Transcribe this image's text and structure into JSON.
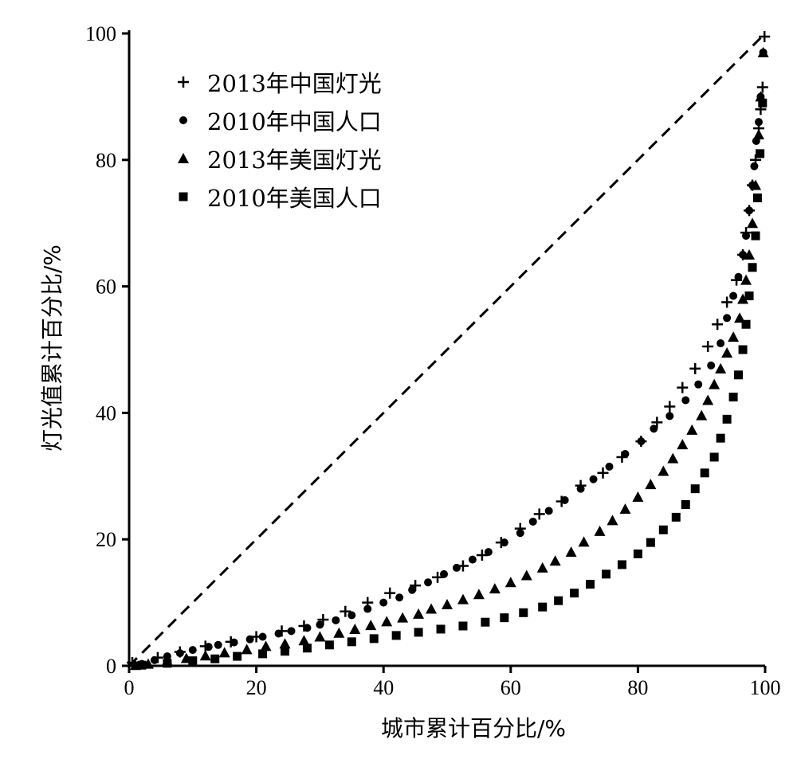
{
  "chart_data": {
    "type": "scatter",
    "xlabel": "城市累计百分比/%",
    "ylabel": "灯光值累计百分比/%",
    "xlim": [
      0,
      100
    ],
    "ylim": [
      0,
      100
    ],
    "x_ticks": [
      "0",
      "20",
      "40",
      "60",
      "80",
      "100"
    ],
    "y_ticks": [
      "0",
      "20",
      "40",
      "60",
      "80",
      "100"
    ],
    "grid": false,
    "legend_position": "top-left",
    "reference_line": {
      "style": "dashed",
      "from": [
        0,
        0
      ],
      "to": [
        100,
        100
      ]
    },
    "series": [
      {
        "name": "2013年中国灯光",
        "marker": "plus",
        "x": [
          0.5,
          4.5,
          8,
          12,
          16,
          20,
          24,
          27.5,
          30.5,
          34,
          37.5,
          41,
          45,
          48.5,
          52.5,
          55.5,
          58.5,
          61.5,
          64.5,
          68,
          71,
          74.5,
          77.5,
          80.5,
          83,
          85,
          87,
          89,
          91,
          92.5,
          94,
          95.5,
          96.5,
          97,
          97.5,
          98,
          98.5,
          99,
          99.3,
          99.6,
          99.9
        ],
        "y": [
          0.5,
          1.3,
          2.2,
          3.1,
          3.8,
          4.6,
          5.5,
          6.3,
          7.3,
          8.6,
          10,
          11.5,
          12.7,
          14,
          15.8,
          17.5,
          19.5,
          21.7,
          24,
          26,
          28.5,
          30.5,
          33,
          35.5,
          38.5,
          41,
          44,
          47,
          50.5,
          54,
          57.5,
          61,
          65,
          68.5,
          72,
          76,
          80,
          85,
          88,
          91.5,
          99.5
        ]
      },
      {
        "name": "2010年中国人口",
        "marker": "circle",
        "x": [
          2,
          4,
          6,
          8,
          10,
          12.5,
          14,
          16.5,
          19,
          21,
          23.5,
          25.5,
          28,
          30,
          32.5,
          35,
          37.5,
          40,
          42.5,
          44.5,
          47,
          49.5,
          51.5,
          54,
          56.5,
          59,
          61.5,
          63.5,
          66,
          68.5,
          71,
          73,
          75.5,
          78,
          80.5,
          82.5,
          85,
          87.5,
          89.5,
          91.5,
          93,
          94,
          95,
          95.8,
          96.5,
          97,
          97.5,
          98,
          98.3,
          98.6,
          99,
          99.3,
          99.7
        ],
        "y": [
          0.3,
          0.9,
          1.5,
          2,
          2.5,
          3,
          3.3,
          3.7,
          4.2,
          4.6,
          5.1,
          5.5,
          6,
          6.5,
          7.2,
          8,
          9,
          10,
          10.8,
          12,
          13.2,
          14.5,
          15.5,
          16.8,
          18,
          19.5,
          21,
          22.8,
          24.5,
          26.2,
          28,
          29.5,
          31.5,
          33.5,
          35.5,
          37.5,
          39.5,
          42,
          44.5,
          47.5,
          51,
          55,
          58.5,
          61.5,
          65,
          68,
          72,
          76,
          79,
          83,
          86,
          90,
          97
        ]
      },
      {
        "name": "2013年美国灯光",
        "marker": "triangle",
        "x": [
          1,
          3,
          6,
          9,
          12,
          15,
          18.5,
          21.5,
          24.5,
          27.5,
          30,
          33,
          35.5,
          38,
          40.5,
          43,
          45.5,
          47.5,
          50,
          52.5,
          55,
          57.5,
          60,
          62.5,
          65,
          67,
          69.5,
          71.5,
          74,
          76,
          78,
          80,
          82,
          84,
          85.5,
          87,
          88.5,
          90,
          91,
          92,
          93,
          94,
          95,
          96,
          96.5,
          97,
          97.5,
          98,
          98.5,
          99,
          99.3,
          99.7
        ],
        "y": [
          0.1,
          0.3,
          0.8,
          1.2,
          1.6,
          2.1,
          2.6,
          3.1,
          3.5,
          4,
          4.6,
          5.2,
          5.8,
          6.4,
          7,
          7.6,
          8.2,
          9,
          9.7,
          10.5,
          11.3,
          12.2,
          13.2,
          14.3,
          15.5,
          16.6,
          18,
          19.6,
          21.3,
          23,
          24.8,
          26.7,
          28.7,
          30.8,
          32.8,
          35,
          37.3,
          39.6,
          42,
          44.5,
          47,
          49.5,
          52,
          55,
          58,
          61,
          65,
          70,
          76,
          84,
          90,
          97
        ]
      },
      {
        "name": "2010年美国人口",
        "marker": "square",
        "x": [
          2,
          6,
          10,
          13.5,
          17,
          21,
          24.5,
          28,
          31.5,
          35,
          38.5,
          42,
          45.5,
          49,
          52.5,
          56,
          59,
          62,
          65,
          67.5,
          70,
          72.5,
          75,
          77.5,
          80,
          82,
          84,
          86,
          87.5,
          89,
          90.5,
          92,
          93,
          94,
          95,
          95.8,
          96.5,
          97,
          97.5,
          98,
          98.5,
          98.8,
          99.2,
          99.6
        ],
        "y": [
          0.1,
          0.4,
          0.8,
          1.1,
          1.5,
          1.9,
          2.3,
          2.8,
          3.3,
          3.8,
          4.3,
          4.8,
          5.3,
          5.8,
          6.3,
          6.9,
          7.6,
          8.4,
          9.3,
          10.3,
          11.5,
          12.9,
          14.5,
          16,
          17.7,
          19.5,
          21.5,
          23.5,
          25.5,
          28,
          30.5,
          33,
          36,
          39,
          42.5,
          46,
          50,
          54,
          58.5,
          63,
          68,
          74,
          81,
          89
        ]
      }
    ]
  }
}
